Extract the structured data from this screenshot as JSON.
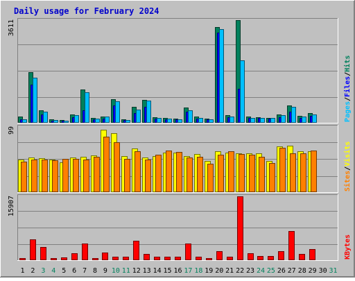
{
  "title": "Daily usage for February 2024",
  "colors": {
    "background": "#c0c0c0",
    "title": "#0000cc",
    "hits": "#00805c",
    "files": "#0000ff",
    "pages": "#00c0ff",
    "visits": "#ffff00",
    "sites": "#ff8000",
    "kbytes": "#ff0000",
    "weekday_label": "#000000",
    "weekend_label": "#00805c"
  },
  "chart_data": [
    {
      "type": "bar",
      "panel": "hits-files-pages",
      "ymax_label": "3611",
      "ylim": [
        0,
        3611
      ],
      "legend": [
        {
          "key": "pages",
          "label": "Pages"
        },
        {
          "key": "sep1",
          "label": "/"
        },
        {
          "key": "files",
          "label": "Files"
        },
        {
          "key": "sep2",
          "label": "/"
        },
        {
          "key": "hits",
          "label": "Hits"
        }
      ],
      "categories": [
        "1",
        "2",
        "3",
        "4",
        "5",
        "6",
        "7",
        "8",
        "9",
        "10",
        "11",
        "12",
        "13",
        "14",
        "15",
        "16",
        "17",
        "18",
        "19",
        "20",
        "21",
        "22",
        "23",
        "24",
        "25",
        "26",
        "27",
        "28",
        "29",
        "30",
        "31"
      ],
      "series": [
        {
          "name": "Hits",
          "color": "#00805c",
          "values": [
            230,
            1770,
            430,
            120,
            100,
            300,
            1170,
            160,
            230,
            820,
            120,
            560,
            800,
            190,
            180,
            150,
            530,
            210,
            150,
            3360,
            270,
            3600,
            210,
            200,
            180,
            300,
            600,
            250,
            340,
            0,
            0
          ]
        },
        {
          "name": "Files",
          "color": "#0000ff",
          "values": [
            130,
            1350,
            300,
            80,
            70,
            200,
            450,
            120,
            150,
            600,
            90,
            350,
            560,
            150,
            130,
            110,
            400,
            150,
            110,
            3160,
            200,
            1200,
            160,
            160,
            140,
            200,
            400,
            180,
            250,
            0,
            0
          ]
        },
        {
          "name": "Pages",
          "color": "#00c0ff",
          "values": [
            110,
            1580,
            390,
            100,
            80,
            260,
            1080,
            140,
            210,
            760,
            100,
            460,
            770,
            160,
            150,
            120,
            440,
            160,
            120,
            3300,
            220,
            2200,
            180,
            180,
            160,
            260,
            550,
            220,
            300,
            0,
            0
          ]
        }
      ]
    },
    {
      "type": "bar",
      "panel": "visits-sites",
      "ymax_label": "99",
      "ylim": [
        0,
        99
      ],
      "legend": [
        {
          "key": "sites",
          "label": "Sites"
        },
        {
          "key": "sep1",
          "label": "/"
        },
        {
          "key": "visits",
          "label": "Visits"
        }
      ],
      "categories": [
        "1",
        "2",
        "3",
        "4",
        "5",
        "6",
        "7",
        "8",
        "9",
        "10",
        "11",
        "12",
        "13",
        "14",
        "15",
        "16",
        "17",
        "18",
        "19",
        "20",
        "21",
        "22",
        "23",
        "24",
        "25",
        "26",
        "27",
        "28",
        "29",
        "30",
        "31"
      ],
      "series": [
        {
          "name": "Visits",
          "color": "#ffff00",
          "values": [
            50,
            53,
            52,
            50,
            45,
            53,
            54,
            56,
            95,
            90,
            55,
            66,
            53,
            55,
            60,
            60,
            55,
            58,
            47,
            62,
            60,
            59,
            59,
            59,
            47,
            69,
            71,
            62,
            62,
            0,
            0
          ]
        },
        {
          "name": "Sites",
          "color": "#ff8000",
          "values": [
            46,
            49,
            49,
            48,
            51,
            51,
            50,
            54,
            84,
            76,
            51,
            62,
            50,
            57,
            63,
            61,
            53,
            54,
            43,
            57,
            62,
            58,
            57,
            54,
            44,
            67,
            59,
            59,
            63,
            0,
            0
          ]
        }
      ]
    },
    {
      "type": "bar",
      "panel": "kbytes",
      "ymax_label": "15907",
      "ylim": [
        0,
        15907
      ],
      "legend": [
        {
          "key": "kbytes",
          "label": "KBytes"
        }
      ],
      "categories": [
        "1",
        "2",
        "3",
        "4",
        "5",
        "6",
        "7",
        "8",
        "9",
        "10",
        "11",
        "12",
        "13",
        "14",
        "15",
        "16",
        "17",
        "18",
        "19",
        "20",
        "21",
        "22",
        "23",
        "24",
        "25",
        "26",
        "27",
        "28",
        "29",
        "30",
        "31"
      ],
      "series": [
        {
          "name": "KBytes",
          "color": "#ff0000",
          "values": [
            500,
            5200,
            3300,
            600,
            700,
            1800,
            4200,
            600,
            1900,
            900,
            900,
            4800,
            1600,
            800,
            800,
            900,
            4200,
            800,
            600,
            2300,
            800,
            15900,
            1700,
            1100,
            1000,
            2200,
            7200,
            1600,
            2800,
            0,
            0
          ]
        }
      ]
    }
  ],
  "x_labels": [
    {
      "label": "1",
      "weekend": false
    },
    {
      "label": "2",
      "weekend": false
    },
    {
      "label": "3",
      "weekend": true
    },
    {
      "label": "4",
      "weekend": true
    },
    {
      "label": "5",
      "weekend": false
    },
    {
      "label": "6",
      "weekend": false
    },
    {
      "label": "7",
      "weekend": false
    },
    {
      "label": "8",
      "weekend": false
    },
    {
      "label": "9",
      "weekend": false
    },
    {
      "label": "10",
      "weekend": true
    },
    {
      "label": "11",
      "weekend": true
    },
    {
      "label": "12",
      "weekend": false
    },
    {
      "label": "13",
      "weekend": false
    },
    {
      "label": "14",
      "weekend": false
    },
    {
      "label": "15",
      "weekend": false
    },
    {
      "label": "16",
      "weekend": false
    },
    {
      "label": "17",
      "weekend": true
    },
    {
      "label": "18",
      "weekend": true
    },
    {
      "label": "19",
      "weekend": false
    },
    {
      "label": "20",
      "weekend": false
    },
    {
      "label": "21",
      "weekend": false
    },
    {
      "label": "22",
      "weekend": false
    },
    {
      "label": "23",
      "weekend": false
    },
    {
      "label": "24",
      "weekend": true
    },
    {
      "label": "25",
      "weekend": true
    },
    {
      "label": "26",
      "weekend": false
    },
    {
      "label": "27",
      "weekend": false
    },
    {
      "label": "28",
      "weekend": false
    },
    {
      "label": "29",
      "weekend": false
    },
    {
      "label": "30",
      "weekend": false
    },
    {
      "label": "31",
      "weekend": true
    }
  ]
}
